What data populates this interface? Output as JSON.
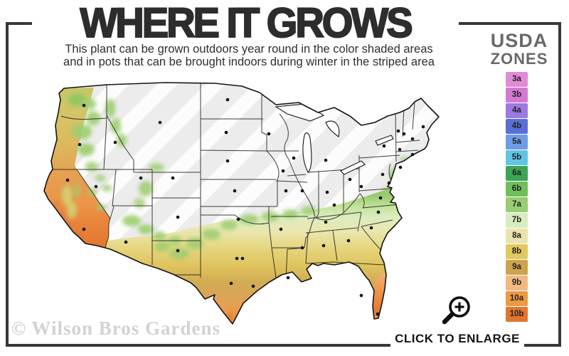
{
  "title": "WHERE IT GROWS",
  "subtitle": {
    "line1": "This plant can be grown outdoors year round in the color shaded areas",
    "line2": "and in pots that can be brought indoors during winter in the striped area"
  },
  "legend": {
    "heading_line1": "USDA",
    "heading_line2": "ZONES",
    "zones": [
      {
        "label": "3a",
        "color": "#e18ad8"
      },
      {
        "label": "3b",
        "color": "#d478d4"
      },
      {
        "label": "4a",
        "color": "#9c7ae2"
      },
      {
        "label": "4b",
        "color": "#5a6ed8"
      },
      {
        "label": "5a",
        "color": "#6f9ce8"
      },
      {
        "label": "5b",
        "color": "#5ec6e2"
      },
      {
        "label": "6a",
        "color": "#3da456"
      },
      {
        "label": "6b",
        "color": "#6fbf5c"
      },
      {
        "label": "7a",
        "color": "#98cd72"
      },
      {
        "label": "7b",
        "color": "#d8ecc0"
      },
      {
        "label": "8a",
        "color": "#ebe3ab"
      },
      {
        "label": "8b",
        "color": "#e2c85e"
      },
      {
        "label": "9a",
        "color": "#cda44c"
      },
      {
        "label": "9b",
        "color": "#f2b983"
      },
      {
        "label": "10a",
        "color": "#ee9a43"
      },
      {
        "label": "10b",
        "color": "#e0762f"
      }
    ]
  },
  "map": {
    "description": "United States USDA hardiness zone growing map",
    "base_color": "#ececec",
    "stripe_color": "#ffffff",
    "outline_color": "#1a1a1a",
    "marker_color": "#111111"
  },
  "watermark": "© Wilson Bros Gardens",
  "enlarge": {
    "icon": "magnifier-plus-icon",
    "label": "CLICK TO ENLARGE"
  }
}
